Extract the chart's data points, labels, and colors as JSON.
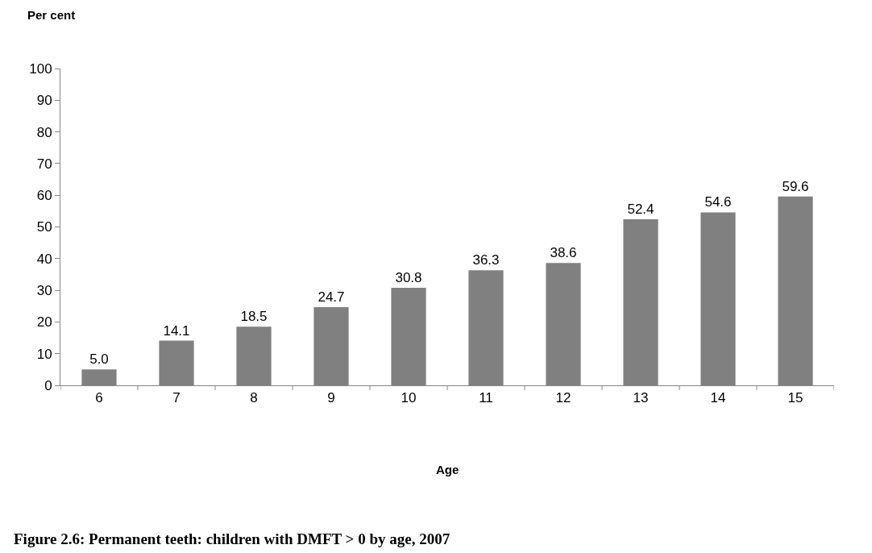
{
  "chart_data": {
    "type": "bar",
    "ylabel": "Per cent",
    "xlabel": "Age",
    "categories": [
      "6",
      "7",
      "8",
      "9",
      "10",
      "11",
      "12",
      "13",
      "14",
      "15"
    ],
    "values": [
      5.0,
      14.1,
      18.5,
      24.7,
      30.8,
      36.3,
      38.6,
      52.4,
      54.6,
      59.6
    ],
    "value_labels": [
      "5.0",
      "14.1",
      "18.5",
      "24.7",
      "30.8",
      "36.3",
      "38.6",
      "52.4",
      "54.6",
      "59.6"
    ],
    "color": "#808080",
    "ylim": [
      0,
      100
    ],
    "yticks": [
      0,
      10,
      20,
      30,
      40,
      50,
      60,
      70,
      80,
      90,
      100
    ],
    "annotations": [
      "Figure 2.6: Permanent teeth: children with DMFT > 0 by age, 2007"
    ]
  }
}
